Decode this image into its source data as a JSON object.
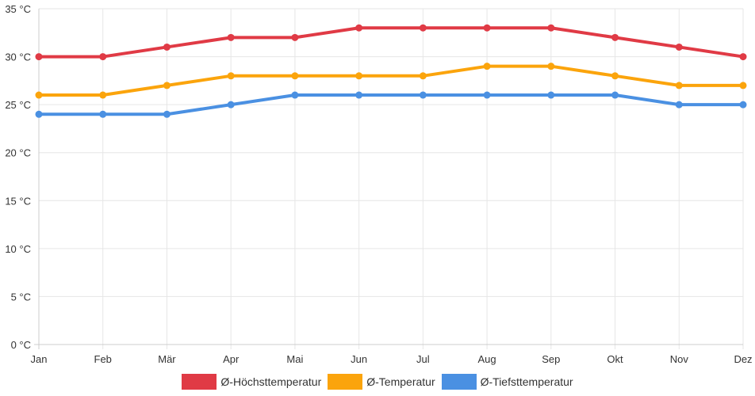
{
  "chart_data": {
    "type": "line",
    "categories": [
      "Jan",
      "Feb",
      "Mär",
      "Apr",
      "Mai",
      "Jun",
      "Jul",
      "Aug",
      "Sep",
      "Okt",
      "Nov",
      "Dez"
    ],
    "y_ticks": [
      "0 °C",
      "5 °C",
      "10 °C",
      "15 °C",
      "20 °C",
      "25 °C",
      "30 °C",
      "35 °C"
    ],
    "ylim": [
      0,
      35
    ],
    "y_unit": "°C",
    "grid": true,
    "legend_position": "bottom",
    "series": [
      {
        "name": "Ø-Höchsttemperatur",
        "color": "#e03a45",
        "values": [
          30,
          30,
          31,
          32,
          32,
          33,
          33,
          33,
          33,
          32,
          31,
          30
        ]
      },
      {
        "name": "Ø-Temperatur",
        "color": "#fba40c",
        "values": [
          26,
          26,
          27,
          28,
          28,
          28,
          28,
          29,
          29,
          28,
          27,
          27
        ]
      },
      {
        "name": "Ø-Tiefsttemperatur",
        "color": "#4a90e2",
        "values": [
          24,
          24,
          24,
          25,
          26,
          26,
          26,
          26,
          26,
          26,
          25,
          25
        ]
      }
    ]
  }
}
